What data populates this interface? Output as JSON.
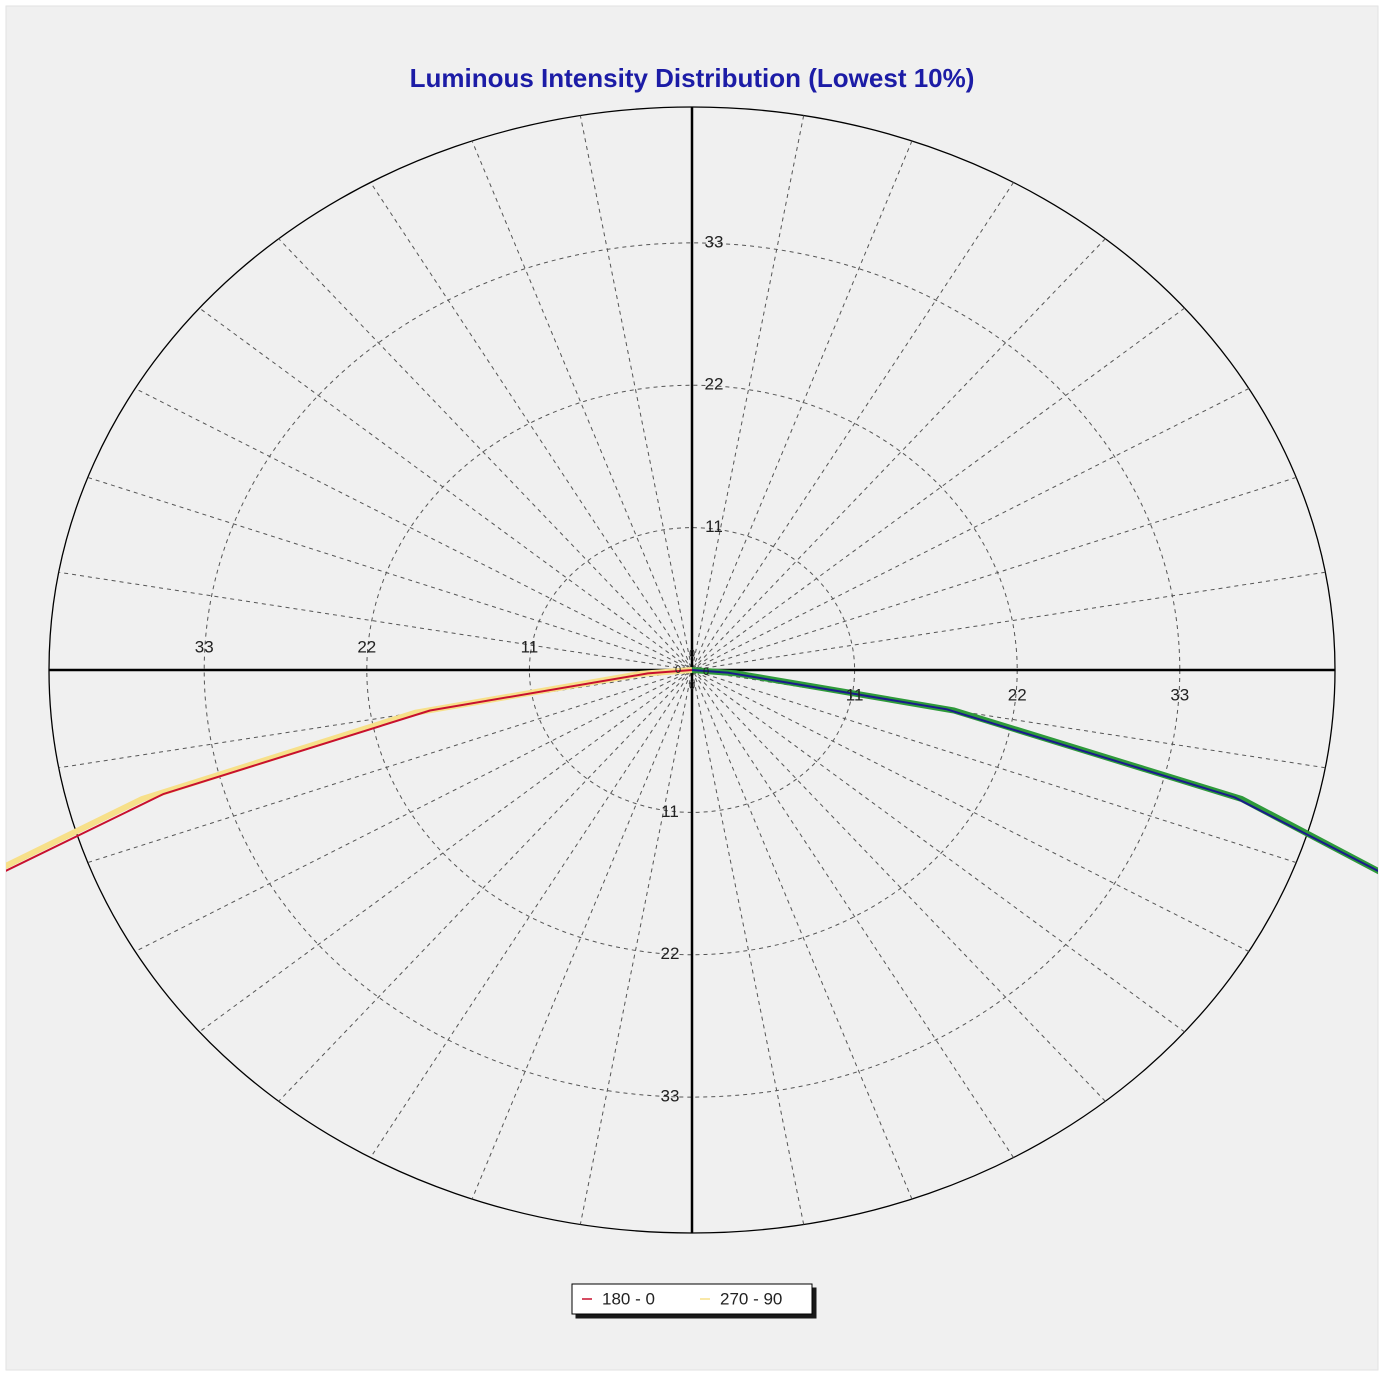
{
  "chart_data": {
    "type": "polar",
    "title": "Luminous Intensity Distribution (Lowest 10%)",
    "rlim": [
      0,
      43.5
    ],
    "rticks": [
      0,
      11,
      22,
      33
    ],
    "angle_grid": [
      0,
      10,
      20,
      30,
      40,
      50,
      60,
      70,
      80,
      90,
      100,
      110,
      120,
      130,
      140,
      150,
      160,
      170
    ],
    "grid": true,
    "legend": "bottom",
    "series": [
      {
        "name": "180 - 0",
        "colors": [
          "#c8102e",
          "#1a1a8c"
        ],
        "width": 2,
        "gamma": [
          70,
          75,
          80,
          85,
          90
        ],
        "left": [
          57,
          37,
          18,
          3,
          0
        ],
        "right": [
          56,
          38,
          17.5,
          2.5,
          0
        ]
      },
      {
        "name": "270 - 90",
        "colors": [
          "#f7e08a",
          "#2e9a3a"
        ],
        "width": 6,
        "gamma": [
          70,
          75,
          80,
          85,
          90
        ],
        "left": [
          59,
          38.5,
          19,
          3.5,
          0
        ],
        "right": [
          55.5,
          38.5,
          18,
          3,
          0
        ]
      }
    ]
  }
}
